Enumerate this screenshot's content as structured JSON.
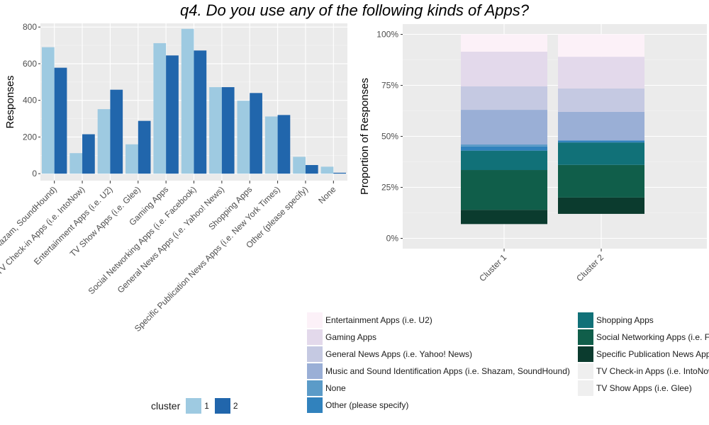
{
  "title": "q4. Do you use any of the following kinds of Apps?",
  "chart_data": [
    {
      "type": "bar",
      "ylabel": "Responses",
      "ylim": [
        0,
        820
      ],
      "yticks": [
        0,
        200,
        400,
        600,
        800
      ],
      "categories": [
        "Music and Sound Identification Apps (i.e. Shazam, SoundHound)",
        "TV Check-in Apps (i.e. IntoNow)",
        "Entertainment Apps (i.e. U2)",
        "TV Show Apps (i.e. Glee)",
        "Gaming Apps",
        "Social Networking Apps (i.e. Facebook)",
        "General News Apps (i.e. Yahoo! News)",
        "Shopping Apps",
        "Specific Publication News Apps (i.e. New York Times)",
        "Other (please specify)",
        "None"
      ],
      "series": [
        {
          "name": "1",
          "color": "#9ECAE1",
          "values": [
            690,
            112,
            352,
            160,
            712,
            790,
            472,
            398,
            312,
            92,
            38
          ]
        },
        {
          "name": "2",
          "color": "#2166AC",
          "values": [
            578,
            215,
            458,
            288,
            645,
            672,
            472,
            440,
            320,
            47,
            5
          ]
        }
      ],
      "legend": {
        "title": "cluster",
        "position": "bottom-left"
      },
      "grid": true
    },
    {
      "type": "bar",
      "stacked": true,
      "ylabel": "Proportion of Responses",
      "ytick_labels": [
        "0%",
        "25%",
        "50%",
        "75%",
        "100%"
      ],
      "ylim": [
        0,
        1
      ],
      "categories": [
        "Cluster 1",
        "Cluster 2"
      ],
      "segments": [
        {
          "name": "Specific Publication News Apps (i.e. New York Times)",
          "color": "#0B3B2E",
          "bottom": [
            0.07,
            0.12
          ],
          "top": [
            0.14,
            0.2
          ]
        },
        {
          "name": "Social Networking Apps (i.e. Facebook)",
          "color": "#105E4A",
          "bottom": [
            0.14,
            0.2
          ],
          "top": [
            0.335,
            0.36
          ]
        },
        {
          "name": "Shopping Apps",
          "color": "#117178",
          "bottom": [
            0.335,
            0.36
          ],
          "top": [
            0.43,
            0.47
          ]
        },
        {
          "name": "Other (please specify)",
          "color": "#3182BD",
          "bottom": [
            0.43,
            0.47
          ],
          "top": [
            0.45,
            0.48
          ]
        },
        {
          "name": "None",
          "color": "#5B9BC8",
          "bottom": [
            0.45,
            0.48
          ],
          "top": [
            0.46,
            0.48
          ]
        },
        {
          "name": "Music and Sound Identification Apps (i.e. Shazam, SoundHound)",
          "color": "#9AAFD6",
          "bottom": [
            0.46,
            0.48
          ],
          "top": [
            0.63,
            0.62
          ]
        },
        {
          "name": "General News Apps (i.e. Yahoo! News)",
          "color": "#C5C9E2",
          "bottom": [
            0.63,
            0.62
          ],
          "top": [
            0.745,
            0.735
          ]
        },
        {
          "name": "Gaming Apps",
          "color": "#E3D9EB",
          "bottom": [
            0.745,
            0.735
          ],
          "top": [
            0.915,
            0.89
          ]
        },
        {
          "name": "Entertainment Apps (i.e. U2)",
          "color": "#FCF1F8",
          "bottom": [
            0.915,
            0.89
          ],
          "top": [
            1.0,
            1.0
          ]
        }
      ],
      "grid": true
    }
  ],
  "fill_legend": [
    {
      "name": "Entertainment Apps (i.e. U2)",
      "color": "#FCF1F8"
    },
    {
      "name": "Gaming Apps",
      "color": "#E3D9EB"
    },
    {
      "name": "General News Apps (i.e. Yahoo! News)",
      "color": "#C5C9E2"
    },
    {
      "name": "Music and Sound Identification Apps (i.e. Shazam, SoundHound)",
      "color": "#9AAFD6"
    },
    {
      "name": "None",
      "color": "#5B9BC8"
    },
    {
      "name": "Other (please specify)",
      "color": "#3182BD"
    },
    {
      "name": "Shopping Apps",
      "color": "#117178"
    },
    {
      "name": "Social Networking Apps (i.e. Facebook)",
      "color": "#105E4A"
    },
    {
      "name": "Specific Publication News Apps (i.e. New York Times)",
      "color": "#0B3B2E"
    },
    {
      "name": "TV Check-in Apps (i.e. IntoNow)",
      "color": "#EFEFEF"
    },
    {
      "name": "TV Show Apps (i.e. Glee)",
      "color": "#EFEFEF"
    }
  ]
}
